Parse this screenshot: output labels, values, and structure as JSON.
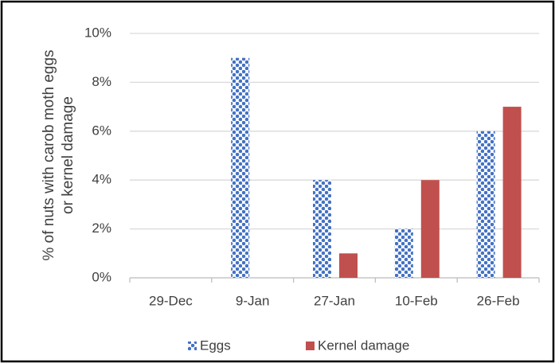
{
  "chart_data": {
    "type": "bar",
    "ylabel": [
      "% of nuts with carob moth eggs",
      "or kernel damage"
    ],
    "categories": [
      "29-Dec",
      "9-Jan",
      "27-Jan",
      "10-Feb",
      "26-Feb"
    ],
    "series": [
      {
        "name": "Eggs",
        "color": "#4472c4",
        "pattern": "checkered",
        "values": [
          0,
          9,
          4,
          2,
          6
        ]
      },
      {
        "name": "Kernel damage",
        "color": "#c0504d",
        "values": [
          0,
          0,
          1,
          4,
          7
        ]
      }
    ],
    "ylim": [
      0,
      10
    ],
    "yticks": [
      {
        "value": 0,
        "label": "0%"
      },
      {
        "value": 2,
        "label": "2%"
      },
      {
        "value": 4,
        "label": "4%"
      },
      {
        "value": 6,
        "label": "6%"
      },
      {
        "value": 8,
        "label": "8%"
      },
      {
        "value": 10,
        "label": "10%"
      }
    ],
    "grid": true,
    "legend": "bottom"
  }
}
